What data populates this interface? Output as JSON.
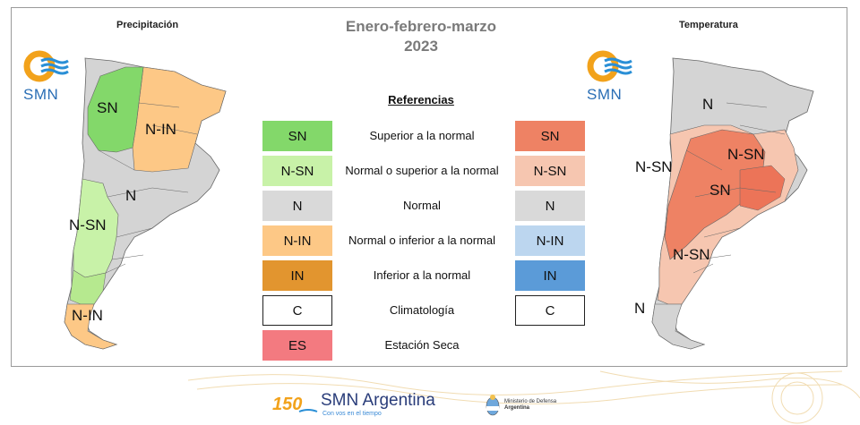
{
  "header": {
    "title_line1": "Enero-febrero-marzo",
    "title_line2": "2023"
  },
  "left_panel": {
    "title": "Precipitación",
    "logo_text": "SMN",
    "map_labels": [
      "SN",
      "N-IN",
      "N",
      "N-SN",
      "N-IN"
    ]
  },
  "right_panel": {
    "title": "Temperatura",
    "logo_text": "SMN",
    "map_labels": [
      "N",
      "N-SN",
      "N-SN",
      "SN",
      "N-SN",
      "N"
    ]
  },
  "legend": {
    "title": "Referencias",
    "rows": [
      {
        "precip_code": "SN",
        "precip_color": "#83d86a",
        "description": "Superior a la normal",
        "temp_code": "SN",
        "temp_color": "#ee8264"
      },
      {
        "precip_code": "N-SN",
        "precip_color": "#c8f2a8",
        "description": "Normal o superior a la normal",
        "temp_code": "N-SN",
        "temp_color": "#f6c6b0"
      },
      {
        "precip_code": "N",
        "precip_color": "#d9d9d9",
        "description": "Normal",
        "temp_code": "N",
        "temp_color": "#d9d9d9"
      },
      {
        "precip_code": "N-IN",
        "precip_color": "#fdc886",
        "description": "Normal o inferior a la normal",
        "temp_code": "N-IN",
        "temp_color": "#bcd6ef"
      },
      {
        "precip_code": "IN",
        "precip_color": "#e2952f",
        "description": "Inferior a la normal",
        "temp_code": "IN",
        "temp_color": "#5b9bd8"
      },
      {
        "precip_code": "C",
        "precip_color": "#ffffff",
        "description": "Climatología",
        "temp_code": "C",
        "temp_color": "#ffffff"
      },
      {
        "precip_code": "ES",
        "precip_color": "#f37a80",
        "description": "Estación Seca",
        "temp_code": "",
        "temp_color": ""
      }
    ]
  },
  "footer": {
    "brand": "SMN Argentina",
    "tagline": "Con vos en el tiempo",
    "ministry_line1": "Ministerio de Defensa",
    "ministry_line2": "Argentina",
    "anniversary": "150"
  }
}
